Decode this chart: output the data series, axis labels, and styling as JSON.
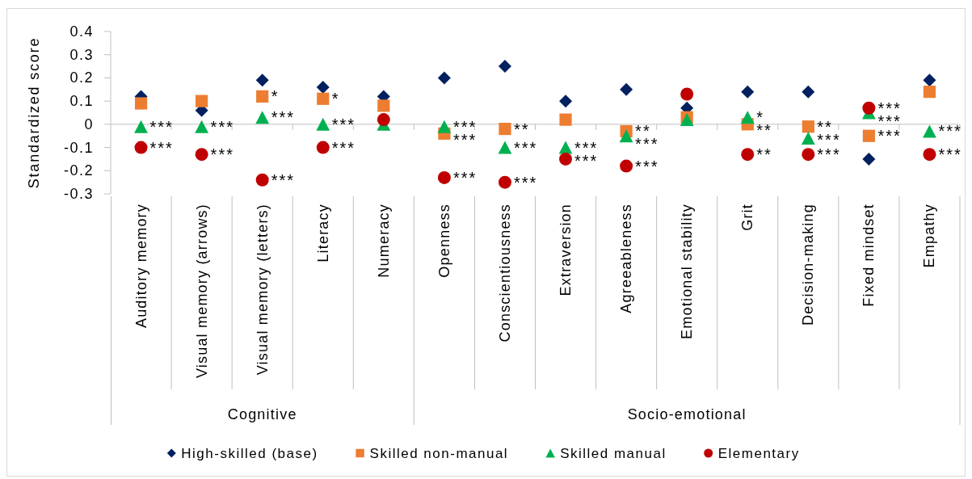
{
  "chart_data": {
    "type": "scatter",
    "ylabel": "Standardized score",
    "legend": "bottom",
    "categories": [
      "Auditory memory",
      "Visual memory (arrows)",
      "Visual memory (letters)",
      "Literacy",
      "Numeracy",
      "Openness",
      "Conscientiousness",
      "Extraversion",
      "Agreeableness",
      "Emotional stability",
      "Grit",
      "Decision-making",
      "Fixed mindset",
      "Empathy"
    ],
    "ylim": [
      -0.3,
      0.4
    ],
    "yticks": [
      -0.3,
      -0.2,
      -0.1,
      0,
      0.1,
      0.2,
      0.3,
      0.4
    ],
    "series": [
      {
        "name": "High-skilled (base)",
        "color": "#002060",
        "marker": "diamond",
        "values": [
          0.12,
          0.06,
          0.19,
          0.16,
          0.12,
          0.2,
          0.25,
          0.1,
          0.15,
          0.07,
          0.14,
          0.14,
          -0.15,
          0.19
        ]
      },
      {
        "name": "Skilled non-manual",
        "color": "#ed7d31",
        "marker": "square",
        "values": [
          0.09,
          0.1,
          0.12,
          0.11,
          0.08,
          -0.04,
          -0.02,
          0.02,
          -0.03,
          0.03,
          0,
          -0.01,
          -0.05,
          0.14
        ]
      },
      {
        "name": "Skilled manual",
        "color": "#00b050",
        "marker": "triangle",
        "values": [
          -0.01,
          -0.01,
          0.03,
          0,
          0,
          -0.01,
          -0.1,
          -0.1,
          -0.05,
          0.02,
          0.03,
          -0.06,
          0.05,
          -0.03
        ]
      },
      {
        "name": "Elementary",
        "color": "#c00000",
        "marker": "circle",
        "values": [
          -0.1,
          -0.13,
          -0.24,
          -0.1,
          0.02,
          -0.23,
          -0.25,
          -0.15,
          -0.18,
          0.13,
          -0.13,
          -0.13,
          0.07,
          -0.13
        ]
      }
    ],
    "annotations": [
      {
        "text": "***",
        "x": "Auditory memory",
        "y": -0.01
      },
      {
        "text": "***",
        "x": "Auditory memory",
        "y": -0.1
      },
      {
        "text": "***",
        "x": "Visual memory (arrows)",
        "y": -0.01
      },
      {
        "text": "***",
        "x": "Visual memory (arrows)",
        "y": -0.13
      },
      {
        "text": "*",
        "x": "Visual memory (letters)",
        "y": 0.12
      },
      {
        "text": "***",
        "x": "Visual memory (letters)",
        "y": 0.03
      },
      {
        "text": "***",
        "x": "Visual memory (letters)",
        "y": -0.24
      },
      {
        "text": "*",
        "x": "Literacy",
        "y": 0.11
      },
      {
        "text": "***",
        "x": "Literacy",
        "y": 0
      },
      {
        "text": "***",
        "x": "Literacy",
        "y": -0.1
      },
      {
        "text": "***",
        "x": "Openness",
        "y": -0.01
      },
      {
        "text": "***",
        "x": "Openness",
        "y": -0.04
      },
      {
        "text": "***",
        "x": "Openness",
        "y": -0.23
      },
      {
        "text": "**",
        "x": "Conscientiousness",
        "y": -0.02
      },
      {
        "text": "***",
        "x": "Conscientiousness",
        "y": -0.1
      },
      {
        "text": "***",
        "x": "Conscientiousness",
        "y": -0.25
      },
      {
        "text": "***",
        "x": "Extraversion",
        "y": -0.1
      },
      {
        "text": "***",
        "x": "Extraversion",
        "y": -0.15
      },
      {
        "text": "**",
        "x": "Agreeableness",
        "y": -0.03
      },
      {
        "text": "***",
        "x": "Agreeableness",
        "y": -0.05
      },
      {
        "text": "***",
        "x": "Agreeableness",
        "y": -0.18
      },
      {
        "text": "*",
        "x": "Grit",
        "y": 0.03
      },
      {
        "text": "**",
        "x": "Grit",
        "y": 0
      },
      {
        "text": "**",
        "x": "Grit",
        "y": -0.13
      },
      {
        "text": "**",
        "x": "Decision-making",
        "y": -0.01
      },
      {
        "text": "***",
        "x": "Decision-making",
        "y": -0.06
      },
      {
        "text": "***",
        "x": "Decision-making",
        "y": -0.13
      },
      {
        "text": "***",
        "x": "Fixed mindset",
        "y": 0.07
      },
      {
        "text": "***",
        "x": "Fixed mindset",
        "y": 0.05
      },
      {
        "text": "***",
        "x": "Fixed mindset",
        "y": -0.05
      },
      {
        "text": "***",
        "x": "Empathy",
        "y": -0.03
      },
      {
        "text": "***",
        "x": "Empathy",
        "y": -0.13
      },
      "Cognitive",
      "Socio-emotional"
    ]
  }
}
